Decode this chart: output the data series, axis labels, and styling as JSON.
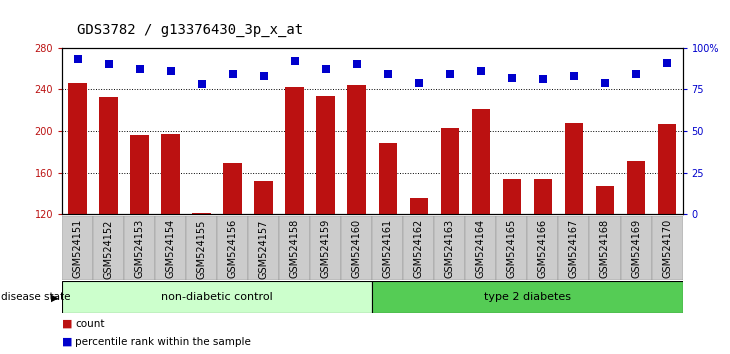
{
  "title": "GDS3782 / g13376430_3p_x_at",
  "samples": [
    "GSM524151",
    "GSM524152",
    "GSM524153",
    "GSM524154",
    "GSM524155",
    "GSM524156",
    "GSM524157",
    "GSM524158",
    "GSM524159",
    "GSM524160",
    "GSM524161",
    "GSM524162",
    "GSM524163",
    "GSM524164",
    "GSM524165",
    "GSM524166",
    "GSM524167",
    "GSM524168",
    "GSM524169",
    "GSM524170"
  ],
  "counts": [
    246,
    233,
    196,
    197,
    121,
    169,
    152,
    242,
    234,
    244,
    188,
    136,
    203,
    221,
    154,
    154,
    208,
    147,
    171,
    207
  ],
  "percentiles": [
    93,
    90,
    87,
    86,
    78,
    84,
    83,
    92,
    87,
    90,
    84,
    79,
    84,
    86,
    82,
    81,
    83,
    79,
    84,
    91
  ],
  "ylim_left": [
    120,
    280
  ],
  "ylim_right": [
    0,
    100
  ],
  "yticks_left": [
    120,
    160,
    200,
    240,
    280
  ],
  "yticks_right": [
    0,
    25,
    50,
    75,
    100
  ],
  "ytick_labels_right": [
    "0",
    "25",
    "50",
    "75",
    "100%"
  ],
  "grid_lines": [
    160,
    200,
    240
  ],
  "bar_color": "#BB1111",
  "dot_color": "#0000CC",
  "bar_width": 0.6,
  "non_diabetic_label": "non-diabetic control",
  "diabetes_label": "type 2 diabetes",
  "non_diabetic_count": 10,
  "disease_state_label": "disease state",
  "legend_count_label": "count",
  "legend_percentile_label": "percentile rank within the sample",
  "bg_color_non_diabetic": "#CCFFCC",
  "bg_color_diabetic": "#55CC55",
  "tick_label_color_left": "#BB1111",
  "tick_label_color_right": "#0000CC",
  "title_fontsize": 10,
  "tick_fontsize": 7,
  "dot_size": 30,
  "dot_marker": "s",
  "category_bg_color": "#CCCCCC",
  "bar_bottom": 120
}
